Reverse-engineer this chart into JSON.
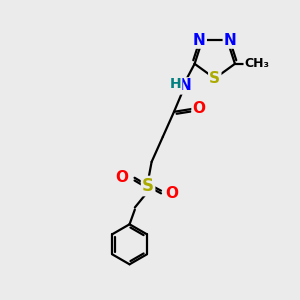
{
  "bg_color": "#ebebeb",
  "bond_color": "#000000",
  "bond_width": 1.6,
  "dbo": 0.08,
  "atom_colors": {
    "N": "#0000FF",
    "S": "#AAAA00",
    "O": "#FF0000",
    "H": "#008080",
    "C": "#000000"
  },
  "fs": 11,
  "fs_small": 9
}
